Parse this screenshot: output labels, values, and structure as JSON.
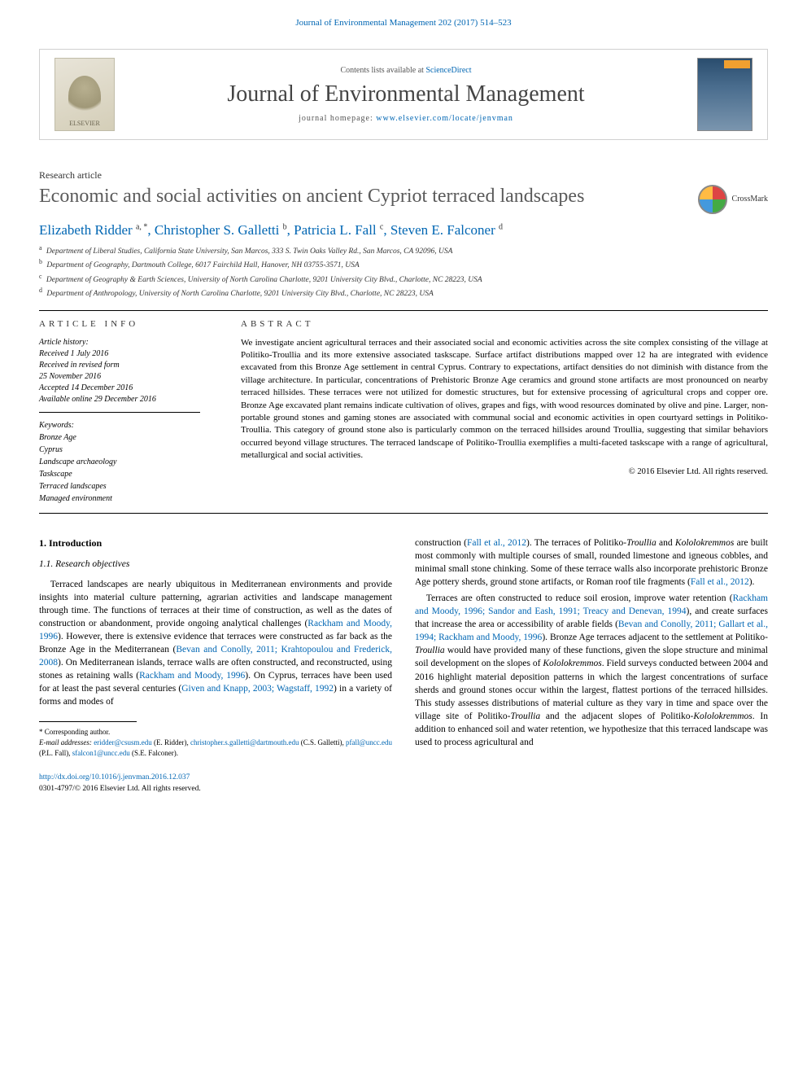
{
  "header": {
    "journal_ref": "Journal of Environmental Management 202 (2017) 514–523",
    "contents_line_pre": "Contents lists available at ",
    "contents_link": "ScienceDirect",
    "journal_title": "Journal of Environmental Management",
    "homepage_pre": "journal homepage: ",
    "homepage_url": "www.elsevier.com/locate/jenvman",
    "elsevier_label": "ELSEVIER",
    "crossmark_label": "CrossMark"
  },
  "article": {
    "type": "Research article",
    "title": "Economic and social activities on ancient Cypriot terraced landscapes",
    "authors_html": "Elizabeth Ridder <sup>a, *</sup>, Christopher S. Galletti <sup>b</sup>, Patricia L. Fall <sup>c</sup>, Steven E. Falconer <sup>d</sup>",
    "affiliations": [
      {
        "sup": "a",
        "text": "Department of Liberal Studies, California State University, San Marcos, 333 S. Twin Oaks Valley Rd., San Marcos, CA 92096, USA"
      },
      {
        "sup": "b",
        "text": "Department of Geography, Dartmouth College, 6017 Fairchild Hall, Hanover, NH 03755-3571, USA"
      },
      {
        "sup": "c",
        "text": "Department of Geography & Earth Sciences, University of North Carolina Charlotte, 9201 University City Blvd., Charlotte, NC 28223, USA"
      },
      {
        "sup": "d",
        "text": "Department of Anthropology, University of North Carolina Charlotte, 9201 University City Blvd., Charlotte, NC 28223, USA"
      }
    ]
  },
  "info": {
    "heading": "ARTICLE INFO",
    "history_label": "Article history:",
    "history": [
      "Received 1 July 2016",
      "Received in revised form",
      "25 November 2016",
      "Accepted 14 December 2016",
      "Available online 29 December 2016"
    ],
    "keywords_label": "Keywords:",
    "keywords": [
      "Bronze Age",
      "Cyprus",
      "Landscape archaeology",
      "Taskscape",
      "Terraced landscapes",
      "Managed environment"
    ]
  },
  "abstract": {
    "heading": "ABSTRACT",
    "text": "We investigate ancient agricultural terraces and their associated social and economic activities across the site complex consisting of the village at Politiko-Troullia and its more extensive associated taskscape. Surface artifact distributions mapped over 12 ha are integrated with evidence excavated from this Bronze Age settlement in central Cyprus. Contrary to expectations, artifact densities do not diminish with distance from the village architecture. In particular, concentrations of Prehistoric Bronze Age ceramics and ground stone artifacts are most pronounced on nearby terraced hillsides. These terraces were not utilized for domestic structures, but for extensive processing of agricultural crops and copper ore. Bronze Age excavated plant remains indicate cultivation of olives, grapes and figs, with wood resources dominated by olive and pine. Larger, non-portable ground stones and gaming stones are associated with communal social and economic activities in open courtyard settings in Politiko-Troullia. This category of ground stone also is particularly common on the terraced hillsides around Troullia, suggesting that similar behaviors occurred beyond village structures. The terraced landscape of Politiko-Troullia exemplifies a multi-faceted taskscape with a range of agricultural, metallurgical and social activities.",
    "copyright": "© 2016 Elsevier Ltd. All rights reserved."
  },
  "body": {
    "section1_heading": "1. Introduction",
    "section11_heading": "1.1. Research objectives",
    "col1_para": "Terraced landscapes are nearly ubiquitous in Mediterranean environments and provide insights into material culture patterning, agrarian activities and landscape management through time. The functions of terraces at their time of construction, as well as the dates of construction or abandonment, provide ongoing analytical challenges (<span class=\"ref-link\">Rackham and Moody, 1996</span>). However, there is extensive evidence that terraces were constructed as far back as the Bronze Age in the Mediterranean (<span class=\"ref-link\">Bevan and Conolly, 2011; Krahtopoulou and Frederick, 2008</span>). On Mediterranean islands, terrace walls are often constructed, and reconstructed, using stones as retaining walls (<span class=\"ref-link\">Rackham and Moody, 1996</span>). On Cyprus, terraces have been used for at least the past several centuries (<span class=\"ref-link\">Given and Knapp, 2003; Wagstaff, 1992</span>) in a variety of forms and modes of",
    "col2_para1": "construction (<span class=\"ref-link\">Fall et al., 2012</span>). The terraces of Politiko-<em class=\"site\">Troullia</em> and <em class=\"site\">Kololokremmos</em> are built most commonly with multiple courses of small, rounded limestone and igneous cobbles, and minimal small stone chinking. Some of these terrace walls also incorporate prehistoric Bronze Age pottery sherds, ground stone artifacts, or Roman roof tile fragments (<span class=\"ref-link\">Fall et al., 2012</span>).",
    "col2_para2": "Terraces are often constructed to reduce soil erosion, improve water retention (<span class=\"ref-link\">Rackham and Moody, 1996; Sandor and Eash, 1991; Treacy and Denevan, 1994</span>), and create surfaces that increase the area or accessibility of arable fields (<span class=\"ref-link\">Bevan and Conolly, 2011; Gallart et al., 1994; Rackham and Moody, 1996</span>). Bronze Age terraces adjacent to the settlement at Politiko-<em class=\"site\">Troullia</em> would have provided many of these functions, given the slope structure and minimal soil development on the slopes of <em class=\"site\">Kololokremmos</em>. Field surveys conducted between 2004 and 2016 highlight material deposition patterns in which the largest concentrations of surface sherds and ground stones occur within the largest, flattest portions of the terraced hillsides. This study assesses distributions of material culture as they vary in time and space over the village site of Politiko-<em class=\"site\">Troullia</em> and the adjacent slopes of Politiko-<em class=\"site\">Kololokremmos</em>. In addition to enhanced soil and water retention, we hypothesize that this terraced landscape was used to process agricultural and"
  },
  "footnotes": {
    "corresponding": "* Corresponding author.",
    "emails_label": "E-mail addresses:",
    "emails": [
      {
        "addr": "eridder@csusm.edu",
        "name": "(E. Ridder)"
      },
      {
        "addr": "christopher.s.galletti@dartmouth.edu",
        "name": "(C.S. Galletti)"
      },
      {
        "addr": "pfall@uncc.edu",
        "name": "(P.L. Fall)"
      },
      {
        "addr": "sfalcon1@uncc.edu",
        "name": "(S.E. Falconer)"
      }
    ]
  },
  "footer": {
    "doi": "http://dx.doi.org/10.1016/j.jenvman.2016.12.037",
    "issn_line": "0301-4797/© 2016 Elsevier Ltd. All rights reserved."
  },
  "colors": {
    "link": "#0066b3",
    "text": "#000000",
    "heading_gray": "#5a5a5a",
    "border": "#d0d0d0"
  },
  "typography": {
    "body_fontsize_pt": 9,
    "title_fontsize_pt": 20,
    "journal_title_fontsize_pt": 24,
    "authors_fontsize_pt": 14
  }
}
